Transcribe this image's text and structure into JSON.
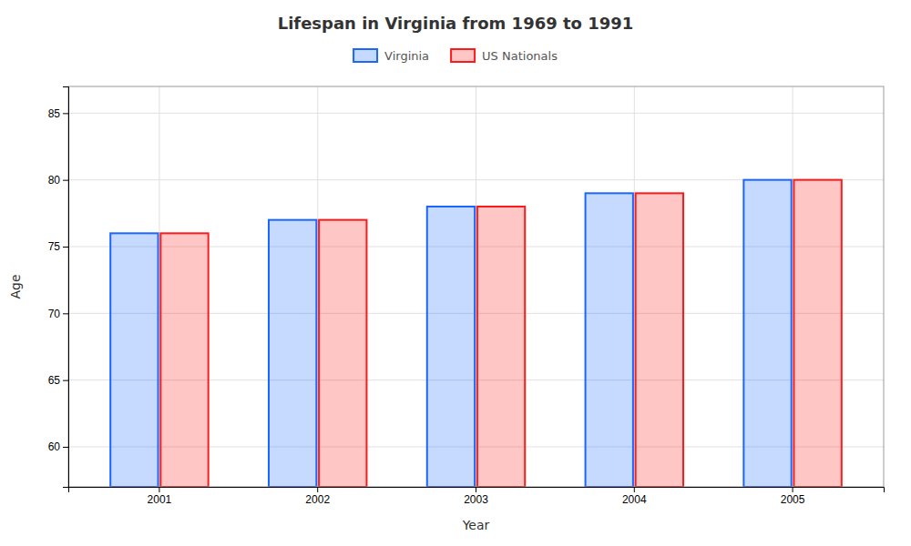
{
  "chart_data": {
    "type": "bar",
    "title": "Lifespan in Virginia from 1969 to 1991",
    "xlabel": "Year",
    "ylabel": "Age",
    "categories": [
      "2001",
      "2002",
      "2003",
      "2004",
      "2005"
    ],
    "series": [
      {
        "name": "Virginia",
        "color": "#1a66ff",
        "values": [
          76.0,
          77.0,
          78.0,
          79.0,
          80.0
        ]
      },
      {
        "name": "US Nationals",
        "color": "#ff1a1a",
        "values": [
          76.0,
          77.0,
          78.0,
          79.0,
          80.0
        ]
      }
    ],
    "ylim": [
      57,
      87
    ],
    "yticks": [
      60,
      65,
      70,
      75,
      80,
      85
    ],
    "grid": true,
    "legend": "top"
  }
}
